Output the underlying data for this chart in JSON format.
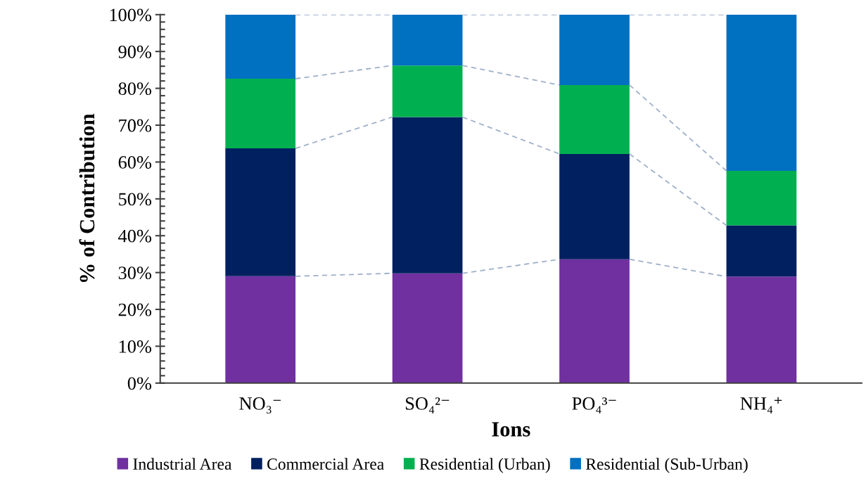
{
  "chart_data": {
    "type": "bar",
    "stacked": true,
    "xlabel": "Ions",
    "ylabel": "% of Contribution",
    "categories": [
      "NO₃⁻",
      "SO₄²⁻",
      "PO₄³⁻",
      "NH₄⁺"
    ],
    "series": [
      {
        "name": "Industrial Area",
        "color": "#7030a0",
        "values": [
          29.0,
          29.8,
          33.6,
          28.9
        ]
      },
      {
        "name": "Commercial Area",
        "color": "#002060",
        "values": [
          34.7,
          42.4,
          28.6,
          13.9
        ]
      },
      {
        "name": "Residential (Urban)",
        "color": "#00b050",
        "values": [
          18.9,
          14.0,
          18.7,
          14.8
        ]
      },
      {
        "name": "Residential (Sub-Urban)",
        "color": "#0070c0",
        "values": [
          17.4,
          13.8,
          19.1,
          42.4
        ]
      }
    ],
    "ylim": [
      0,
      100
    ],
    "yticks": [
      {
        "value": 0,
        "label": "0%"
      },
      {
        "value": 10,
        "label": "10%"
      },
      {
        "value": 20,
        "label": "20%"
      },
      {
        "value": 30,
        "label": "30%"
      },
      {
        "value": 40,
        "label": "40%"
      },
      {
        "value": 50,
        "label": "50%"
      },
      {
        "value": 60,
        "label": "60%"
      },
      {
        "value": 70,
        "label": "70%"
      },
      {
        "value": 80,
        "label": "80%"
      },
      {
        "value": 90,
        "label": "90%"
      },
      {
        "value": 100,
        "label": "100%"
      }
    ],
    "grid": false,
    "legend": "bottom",
    "line_style": "dashed"
  }
}
